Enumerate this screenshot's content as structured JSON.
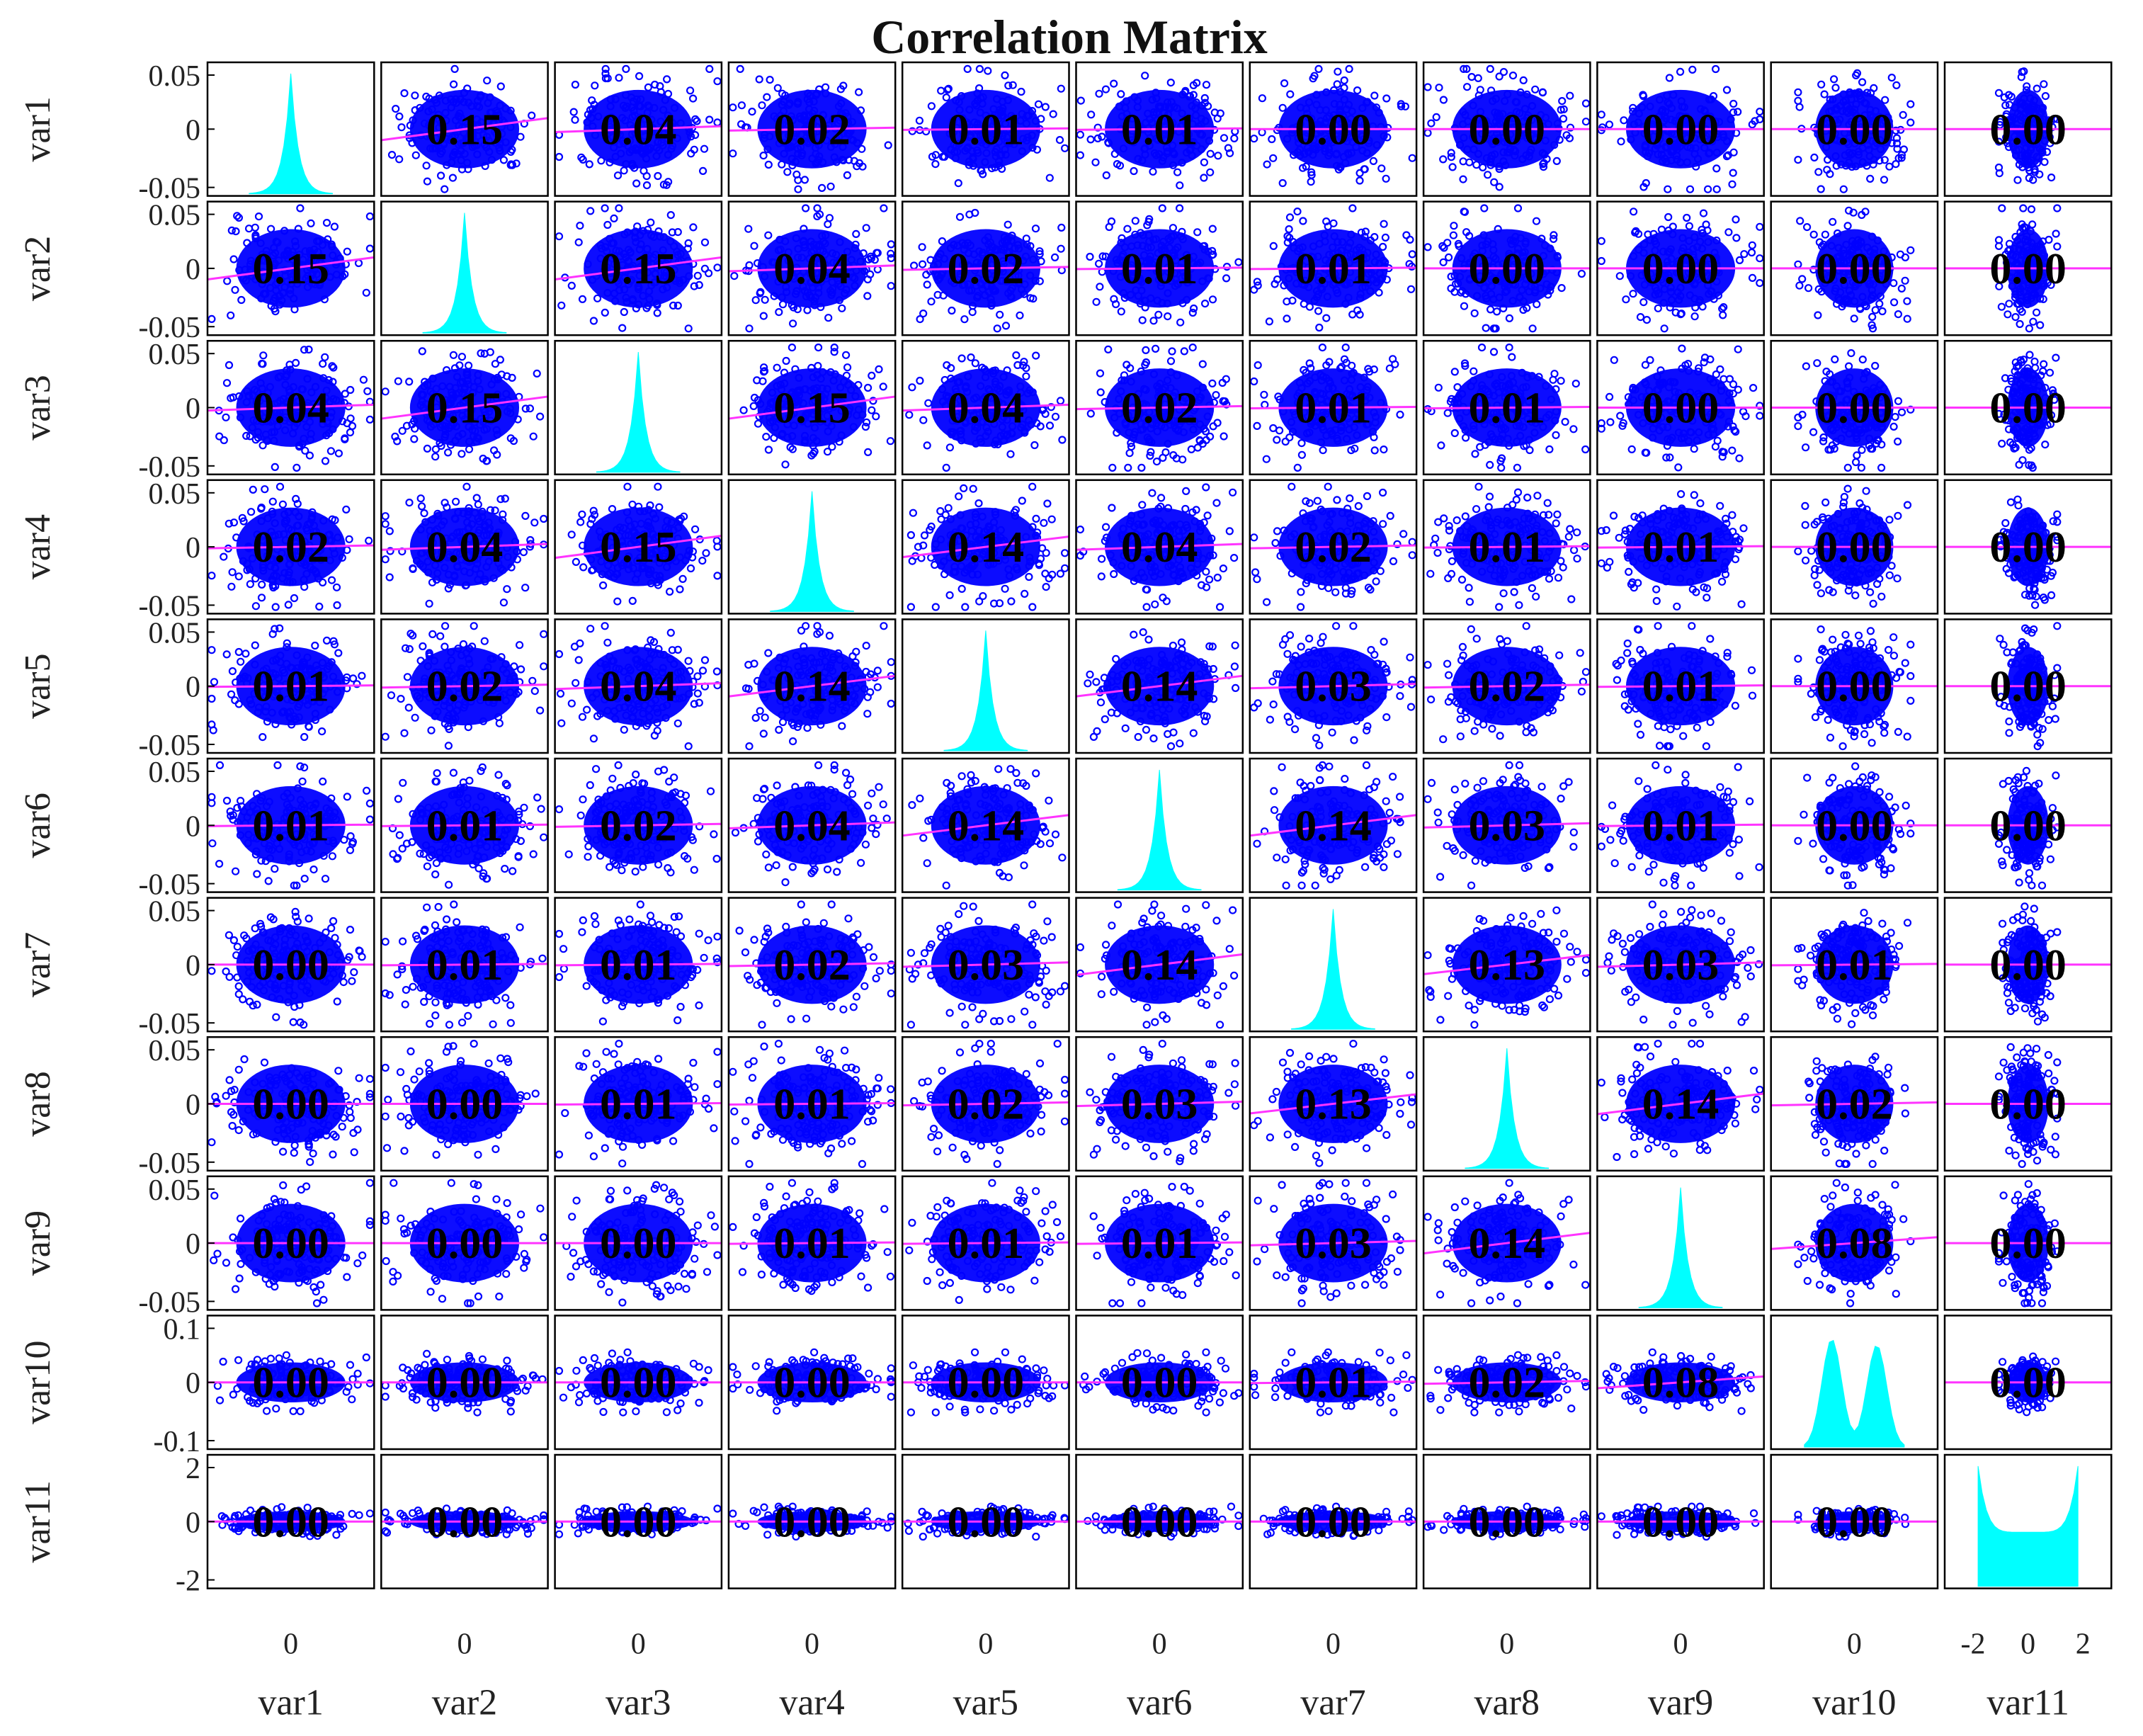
{
  "chart_data": {
    "type": "scatter-matrix",
    "title": "Correlation Matrix",
    "variables": [
      "var1",
      "var2",
      "var3",
      "var4",
      "var5",
      "var6",
      "var7",
      "var8",
      "var9",
      "var10",
      "var11"
    ],
    "correlations": [
      [
        "",
        "0.15",
        "0.04",
        "0.02",
        "0.01",
        "0.01",
        "0.00",
        "0.00",
        "0.00",
        "0.00",
        "0.00"
      ],
      [
        "0.15",
        "",
        "0.15",
        "0.04",
        "0.02",
        "0.01",
        "0.01",
        "0.00",
        "0.00",
        "0.00",
        "0.00"
      ],
      [
        "0.04",
        "0.15",
        "",
        "0.15",
        "0.04",
        "0.02",
        "0.01",
        "0.01",
        "0.00",
        "0.00",
        "0.00"
      ],
      [
        "0.02",
        "0.04",
        "0.15",
        "",
        "0.14",
        "0.04",
        "0.02",
        "0.01",
        "0.01",
        "0.00",
        "0.00"
      ],
      [
        "0.01",
        "0.02",
        "0.04",
        "0.14",
        "",
        "0.14",
        "0.03",
        "0.02",
        "0.01",
        "0.00",
        "0.00"
      ],
      [
        "0.01",
        "0.01",
        "0.02",
        "0.04",
        "0.14",
        "",
        "0.14",
        "0.03",
        "0.01",
        "0.00",
        "0.00"
      ],
      [
        "0.00",
        "0.01",
        "0.01",
        "0.02",
        "0.03",
        "0.14",
        "",
        "0.13",
        "0.03",
        "0.01",
        "0.00"
      ],
      [
        "0.00",
        "0.00",
        "0.01",
        "0.01",
        "0.02",
        "0.03",
        "0.13",
        "",
        "0.14",
        "0.02",
        "0.00"
      ],
      [
        "0.00",
        "0.00",
        "0.00",
        "0.01",
        "0.01",
        "0.01",
        "0.03",
        "0.14",
        "",
        "0.08",
        "0.00"
      ],
      [
        "0.00",
        "0.00",
        "0.00",
        "0.00",
        "0.00",
        "0.00",
        "0.01",
        "0.02",
        "0.08",
        "",
        "0.00"
      ],
      [
        "0.00",
        "0.00",
        "0.00",
        "0.00",
        "0.00",
        "0.00",
        "0.00",
        "0.00",
        "0.00",
        "0.00",
        ""
      ]
    ],
    "y_ticks": [
      [
        "0.05",
        "0",
        "-0.05"
      ],
      [
        "0.05",
        "0",
        "-0.05"
      ],
      [
        "0.05",
        "0",
        "-0.05"
      ],
      [
        "0.05",
        "0",
        "-0.05"
      ],
      [
        "0.05",
        "0",
        "-0.05"
      ],
      [
        "0.05",
        "0",
        "-0.05"
      ],
      [
        "0.05",
        "0",
        "-0.05"
      ],
      [
        "0.05",
        "0",
        "-0.05"
      ],
      [
        "0.05",
        "0",
        "-0.05"
      ],
      [
        "0.1",
        "0",
        "-0.1"
      ],
      [
        "2",
        "0",
        "-2"
      ]
    ],
    "x_ticks": [
      [
        "0"
      ],
      [
        "0"
      ],
      [
        "0"
      ],
      [
        "0"
      ],
      [
        "0"
      ],
      [
        "0"
      ],
      [
        "0"
      ],
      [
        "0"
      ],
      [
        "0"
      ],
      [
        "0"
      ],
      [
        "-2",
        "0",
        "2"
      ]
    ],
    "ranges": [
      [
        -0.05,
        0.05
      ],
      [
        -0.05,
        0.05
      ],
      [
        -0.05,
        0.05
      ],
      [
        -0.05,
        0.05
      ],
      [
        -0.05,
        0.05
      ],
      [
        -0.05,
        0.05
      ],
      [
        -0.05,
        0.05
      ],
      [
        -0.05,
        0.05
      ],
      [
        -0.05,
        0.05
      ],
      [
        -0.13,
        0.13
      ],
      [
        -3,
        3
      ]
    ],
    "diagonal": "histogram",
    "grid": false,
    "colors": {
      "points": "#0000ff",
      "fit_line": "#ff33ff",
      "histogram": "#00ffff",
      "frame": "#000000"
    }
  }
}
